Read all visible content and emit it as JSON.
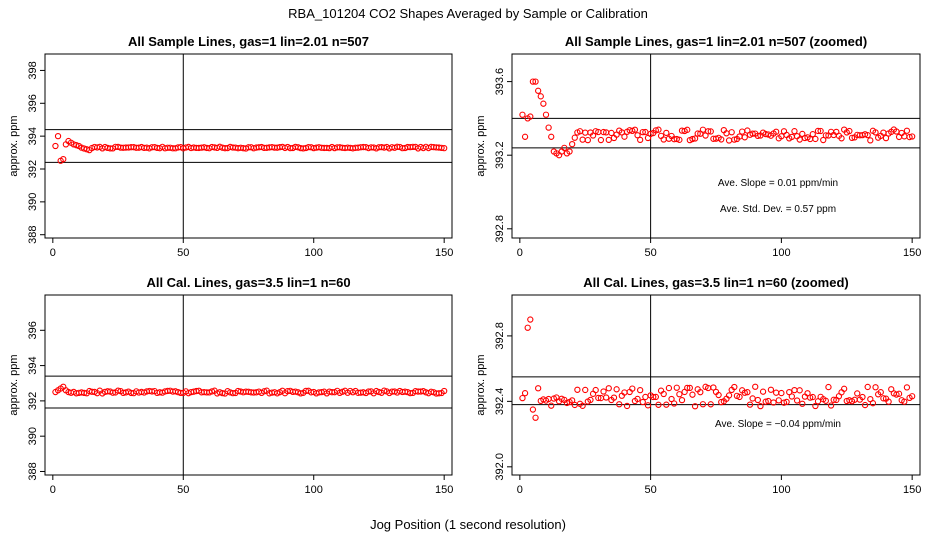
{
  "figure": {
    "title": "RBA_101204  CO2 Shapes Averaged by Sample or Calibration",
    "xlabel": "Jog Position (1 second resolution)"
  },
  "colors": {
    "points": "#ff0000",
    "lines": "#000000"
  },
  "chart_data": [
    {
      "type": "scatter",
      "title": "All Sample Lines, gas=1 lin=2.01 n=507",
      "ylabel": "approx. ppm",
      "xlim": [
        -3,
        153
      ],
      "ylim": [
        387.8,
        399.0
      ],
      "xticks": [
        0,
        50,
        100,
        150
      ],
      "xtick_labels": [
        "0",
        "50",
        "100",
        "150"
      ],
      "yticks": [
        388,
        390,
        392,
        394,
        396,
        398
      ],
      "ytick_labels": [
        "388",
        "390",
        "392",
        "394",
        "396",
        "398"
      ],
      "hlines": [
        394.4,
        392.4
      ],
      "vlines": [
        50
      ],
      "series": {
        "name": "sample",
        "start": 1,
        "length": 150,
        "base": 393.3,
        "noise": 0.05,
        "head": [
          393.4,
          394.0,
          392.5,
          392.6,
          393.5,
          393.7,
          393.6,
          393.5,
          393.45,
          393.4,
          393.3,
          393.25,
          393.2,
          393.15
        ]
      },
      "annotations": []
    },
    {
      "type": "scatter",
      "title": "All Sample Lines, gas=1 lin=2.01 n=507 (zoomed)",
      "ylabel": "approx. ppm",
      "xlim": [
        -3,
        153
      ],
      "ylim": [
        392.75,
        393.75
      ],
      "xticks": [
        0,
        50,
        100,
        150
      ],
      "xtick_labels": [
        "0",
        "50",
        "100",
        "150"
      ],
      "yticks": [
        392.8,
        393.2,
        393.6
      ],
      "ytick_labels": [
        "392.8",
        "393.2",
        "393.6"
      ],
      "hlines": [
        393.4,
        393.24
      ],
      "vlines": [
        50
      ],
      "series": {
        "name": "sample-zoomed",
        "start": 1,
        "length": 150,
        "base": 393.31,
        "noise": 0.03,
        "head": [
          393.42,
          393.3,
          393.4,
          393.41,
          393.6,
          393.6,
          393.55,
          393.52,
          393.48,
          393.42,
          393.35,
          393.3,
          393.22,
          393.21,
          393.2,
          393.22,
          393.24,
          393.21,
          393.22,
          393.26
        ]
      },
      "annotations": [
        "Ave. Slope =  0.01  ppm/min",
        "Ave. Std. Dev. =  0.57  ppm"
      ]
    },
    {
      "type": "scatter",
      "title": "All Cal. Lines, gas=3.5 lin=1 n=60",
      "ylabel": "approx. ppm",
      "xlim": [
        -3,
        153
      ],
      "ylim": [
        387.8,
        398.0
      ],
      "xticks": [
        0,
        50,
        100,
        150
      ],
      "xtick_labels": [
        "0",
        "50",
        "100",
        "150"
      ],
      "yticks": [
        388,
        390,
        392,
        394,
        396
      ],
      "ytick_labels": [
        "388",
        "390",
        "392",
        "394",
        "396"
      ],
      "hlines": [
        393.4,
        391.6
      ],
      "vlines": [
        50
      ],
      "series": {
        "name": "cal",
        "start": 1,
        "length": 150,
        "base": 392.5,
        "noise": 0.08,
        "head": [
          392.5,
          392.6,
          392.7,
          392.8,
          392.6,
          392.5
        ]
      },
      "annotations": []
    },
    {
      "type": "scatter",
      "title": "All Cal. Lines, gas=3.5 lin=1 n=60 (zoomed)",
      "ylabel": "approx. ppm",
      "xlim": [
        -3,
        153
      ],
      "ylim": [
        391.95,
        393.05
      ],
      "xticks": [
        0,
        50,
        100,
        150
      ],
      "xtick_labels": [
        "0",
        "50",
        "100",
        "150"
      ],
      "yticks": [
        392.0,
        392.4,
        392.8
      ],
      "ytick_labels": [
        "392.0",
        "392.4",
        "392.8"
      ],
      "hlines": [
        392.55,
        392.38
      ],
      "vlines": [
        50
      ],
      "series": {
        "name": "cal-zoomed",
        "start": 1,
        "length": 150,
        "base": 392.43,
        "noise": 0.06,
        "head": [
          392.42,
          392.45,
          392.85,
          392.9,
          392.35,
          392.3,
          392.48
        ]
      },
      "annotations": [
        "Ave. Slope =  −0.04  ppm/min"
      ]
    }
  ]
}
